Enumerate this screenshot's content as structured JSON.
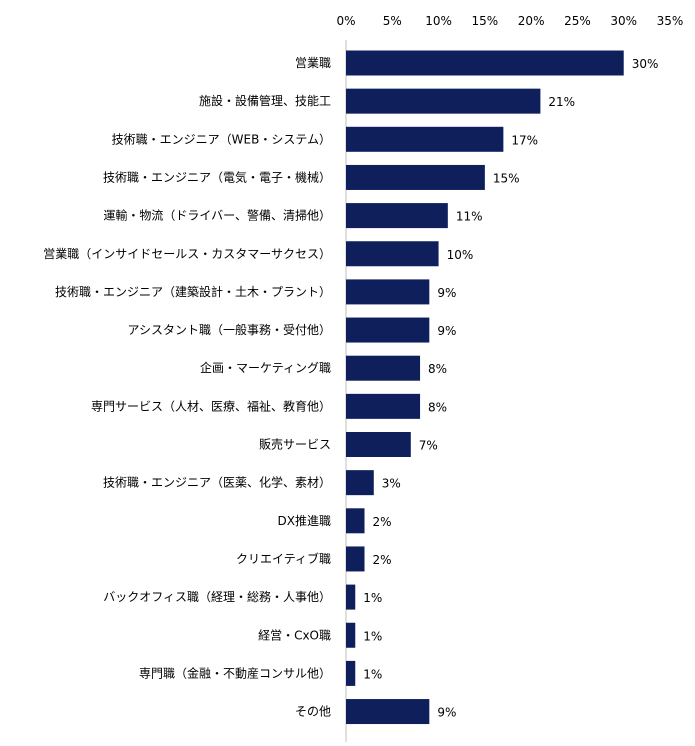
{
  "chart_data": {
    "type": "bar",
    "orientation": "horizontal",
    "title": "",
    "xlabel": "",
    "ylabel": "",
    "xlim": [
      0,
      35
    ],
    "x_ticks": [
      0,
      5,
      10,
      15,
      20,
      25,
      30,
      35
    ],
    "x_tick_labels": [
      "0%",
      "5%",
      "10%",
      "15%",
      "20%",
      "25%",
      "30%",
      "35%"
    ],
    "x_axis_position": "top",
    "grid": false,
    "bar_color": "#0e1f5b",
    "categories": [
      "営業職",
      "施設・設備管理、技能工",
      "技術職・エンジニア（WEB・システム）",
      "技術職・エンジニア（電気・電子・機械）",
      "運輸・物流（ドライバー、警備、清掃他）",
      "営業職（インサイドセールス・カスタマーサクセス）",
      "技術職・エンジニア（建築設計・土木・プラント）",
      "アシスタント職（一般事務・受付他）",
      "企画・マーケティング職",
      "専門サービス（人材、医療、福祉、教育他）",
      "販売サービス",
      "技術職・エンジニア（医薬、化学、素材）",
      "DX推進職",
      "クリエイティブ職",
      "バックオフィス職（経理・総務・人事他）",
      "経営・CxO職",
      "専門職（金融・不動産コンサル他）",
      "その他"
    ],
    "values": [
      30,
      21,
      17,
      15,
      11,
      10,
      9,
      9,
      8,
      8,
      7,
      3,
      2,
      2,
      1,
      1,
      1,
      9
    ],
    "data_labels": [
      "30%",
      "21%",
      "17%",
      "15%",
      "11%",
      "10%",
      "9%",
      "9%",
      "8%",
      "8%",
      "7%",
      "3%",
      "2%",
      "2%",
      "1%",
      "1%",
      "1%",
      "9%"
    ]
  }
}
